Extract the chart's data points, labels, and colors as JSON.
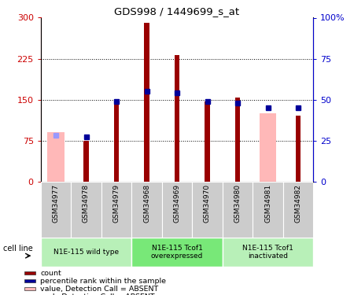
{
  "title": "GDS998 / 1449699_s_at",
  "samples": [
    "GSM34977",
    "GSM34978",
    "GSM34979",
    "GSM34968",
    "GSM34969",
    "GSM34970",
    "GSM34980",
    "GSM34981",
    "GSM34982"
  ],
  "count_values": [
    null,
    75,
    148,
    290,
    232,
    147,
    153,
    null,
    120
  ],
  "percentile_values": [
    null,
    27,
    49,
    55,
    54,
    49,
    48,
    45,
    45
  ],
  "absent_count": [
    90,
    null,
    null,
    null,
    null,
    null,
    null,
    125,
    null
  ],
  "absent_rank": [
    28,
    null,
    null,
    null,
    null,
    null,
    null,
    null,
    null
  ],
  "groups": [
    {
      "label": "N1E-115 wild type",
      "start": 0,
      "end": 3,
      "color": "#b8f0b8"
    },
    {
      "label": "N1E-115 Tcof1\noverexpressed",
      "start": 3,
      "end": 6,
      "color": "#78e878"
    },
    {
      "label": "N1E-115 Tcof1\ninactivated",
      "start": 6,
      "end": 9,
      "color": "#b8f0b8"
    }
  ],
  "bar_color": "#990000",
  "absent_bar_color": "#ffb8b8",
  "percentile_color": "#000099",
  "absent_rank_color": "#9999ff",
  "left_axis_color": "#cc0000",
  "right_axis_color": "#0000cc",
  "ylim_left": [
    0,
    300
  ],
  "ylim_right": [
    0,
    100
  ],
  "yticks_left": [
    0,
    75,
    150,
    225,
    300
  ],
  "yticks_right": [
    0,
    25,
    50,
    75,
    100
  ],
  "ytick_labels_left": [
    "0",
    "75",
    "150",
    "225",
    "300"
  ],
  "ytick_labels_right": [
    "0",
    "25",
    "50",
    "75",
    "100%"
  ],
  "cell_line_label": "cell line",
  "legend_items": [
    {
      "color": "#990000",
      "label": "count",
      "marker": "square"
    },
    {
      "color": "#000099",
      "label": "percentile rank within the sample",
      "marker": "square"
    },
    {
      "color": "#ffb8b8",
      "label": "value, Detection Call = ABSENT",
      "marker": "square"
    },
    {
      "color": "#9999ff",
      "label": "rank, Detection Call = ABSENT",
      "marker": "square"
    }
  ],
  "tick_bg_color": "#cccccc",
  "plot_bg_color": "#ffffff",
  "grid_color": "#000000",
  "absent_bar_width": 0.55,
  "count_bar_width": 0.18
}
